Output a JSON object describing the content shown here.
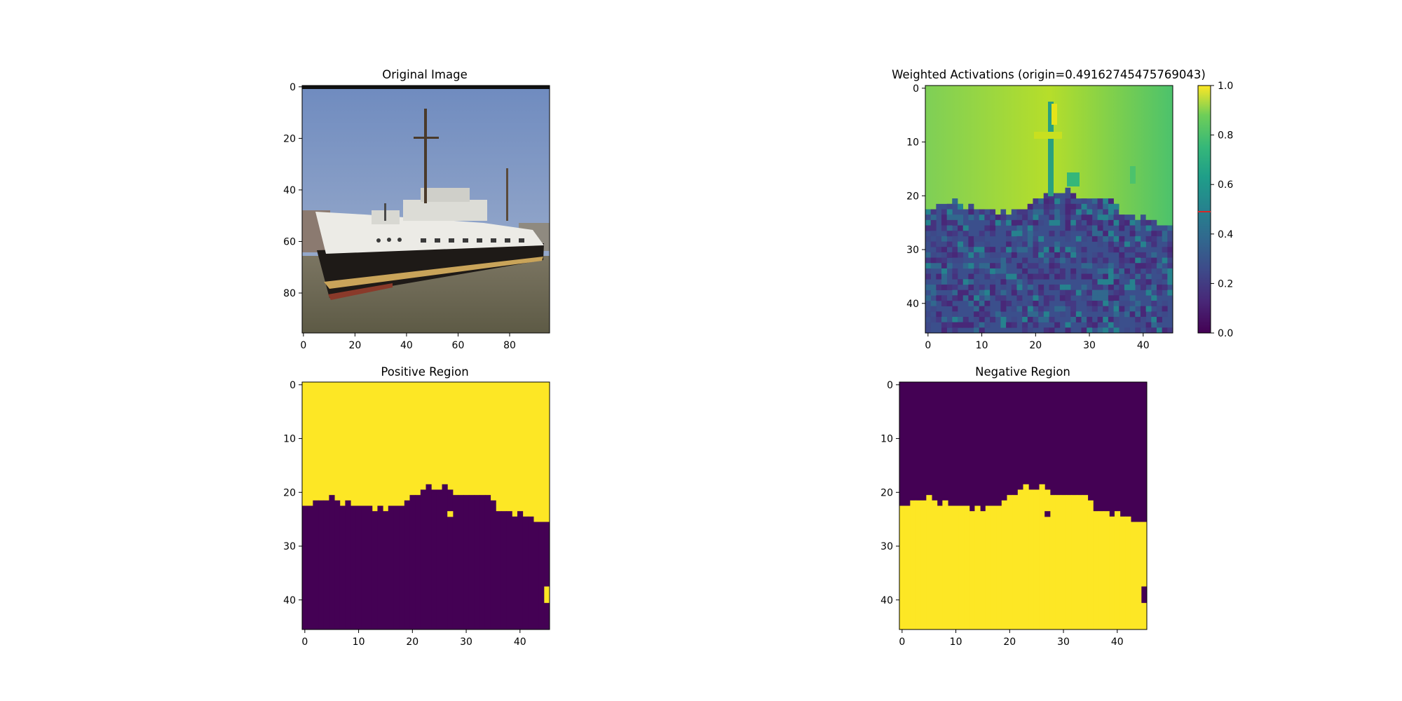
{
  "chart_data": [
    {
      "type": "image",
      "title": "Original Image",
      "x_ticks": [
        "0",
        "20",
        "40",
        "60",
        "80"
      ],
      "y_ticks": [
        "0",
        "20",
        "40",
        "60",
        "80"
      ],
      "extent": [
        96,
        96
      ],
      "description_colors": {
        "sky": "#7e9ac8",
        "hull": "#1e1a17",
        "superstructure": "#eceae4",
        "water": "#6b6350"
      }
    },
    {
      "type": "heatmap",
      "title": "Weighted Activations (origin=0.49162745475769043)",
      "x_ticks": [
        "0",
        "10",
        "20",
        "30",
        "40"
      ],
      "y_ticks": [
        "0",
        "10",
        "20",
        "30",
        "40"
      ],
      "grid_size": [
        46,
        46
      ],
      "colorbar": {
        "ticks": [
          "0.0",
          "0.2",
          "0.4",
          "0.6",
          "0.8",
          "1.0"
        ],
        "range": [
          0.0,
          1.0
        ],
        "marker_value": 0.4916,
        "marker_color": "#d62728"
      },
      "colormap": "viridis"
    },
    {
      "type": "heatmap",
      "title": "Positive Region",
      "x_ticks": [
        "0",
        "10",
        "20",
        "30",
        "40"
      ],
      "y_ticks": [
        "0",
        "10",
        "20",
        "30",
        "40"
      ],
      "grid_size": [
        46,
        46
      ],
      "boundary_rows": [
        23,
        23,
        22,
        22,
        22,
        21,
        22,
        23,
        22,
        23,
        23,
        23,
        23,
        24,
        23,
        24,
        23,
        23,
        23,
        22,
        21,
        21,
        20,
        20,
        20,
        20,
        19,
        20,
        21,
        21,
        21,
        21,
        21,
        21,
        21,
        22,
        24,
        24,
        24,
        25,
        24,
        25,
        25,
        26,
        26,
        26
      ],
      "colors": {
        "positive": "#fde725",
        "negative": "#440154"
      }
    },
    {
      "type": "heatmap",
      "title": "Negative Region",
      "x_ticks": [
        "0",
        "10",
        "20",
        "30",
        "40"
      ],
      "y_ticks": [
        "0",
        "10",
        "20",
        "30",
        "40"
      ],
      "grid_size": [
        46,
        46
      ],
      "boundary_rows": [
        23,
        23,
        22,
        22,
        22,
        21,
        22,
        23,
        22,
        23,
        23,
        23,
        23,
        24,
        23,
        24,
        23,
        23,
        23,
        22,
        21,
        21,
        20,
        20,
        20,
        20,
        19,
        20,
        21,
        21,
        21,
        21,
        21,
        21,
        21,
        22,
        24,
        24,
        24,
        25,
        24,
        25,
        25,
        26,
        26,
        26
      ],
      "colors": {
        "positive": "#fde725",
        "negative": "#440154"
      }
    }
  ]
}
